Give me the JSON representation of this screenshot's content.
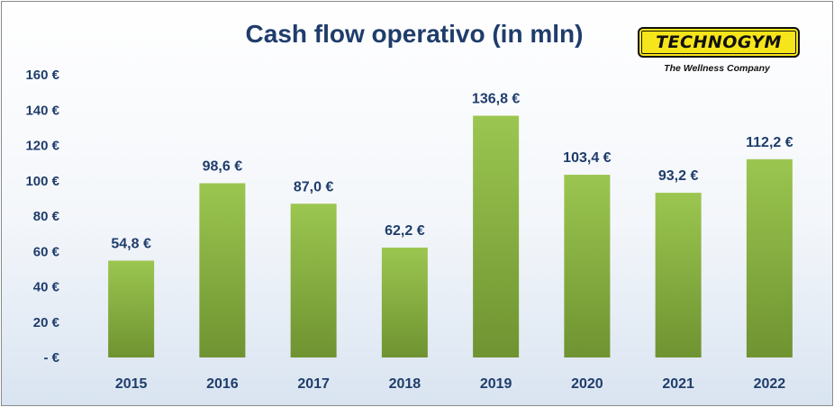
{
  "header": {
    "title": "Cash flow operativo (in mln)"
  },
  "logo": {
    "wordmark": "TECHNOGYM",
    "tagline": "The Wellness Company",
    "colors": {
      "badge": "#f6e51a",
      "ink": "#111111"
    }
  },
  "chart_data": {
    "type": "bar",
    "title": "Cash flow operativo (in mln)",
    "categories": [
      "2015",
      "2016",
      "2017",
      "2018",
      "2019",
      "2020",
      "2021",
      "2022"
    ],
    "values": [
      54.8,
      98.6,
      87.0,
      62.2,
      136.8,
      103.4,
      93.2,
      112.2
    ],
    "data_labels": [
      "54,8 €",
      "98,6 €",
      "87,0 €",
      "62,2 €",
      "136,8 €",
      "103,4 €",
      "93,2 €",
      "112,2 €"
    ],
    "y_ticks": [
      0,
      20,
      40,
      60,
      80,
      100,
      120,
      140,
      160
    ],
    "y_tick_labels": [
      "- €",
      "20 €",
      "40 €",
      "60 €",
      "80 €",
      "100 €",
      "120 €",
      "140 €",
      "160 €"
    ],
    "ylim": [
      0,
      160
    ],
    "xlabel": "",
    "ylabel": "",
    "grid": false,
    "legend": "none",
    "colors": {
      "bar_top": "#9bc650",
      "bar_bottom": "#6f9331",
      "text": "#1f3d6b"
    }
  }
}
